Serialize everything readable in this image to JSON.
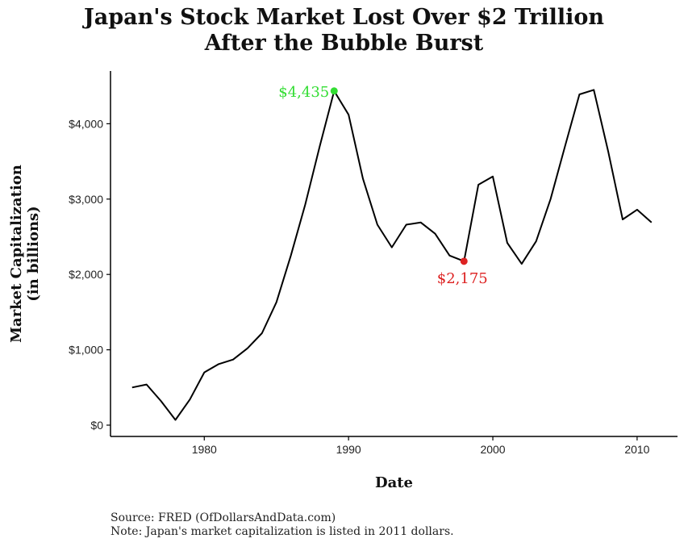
{
  "title_line1": "Japan's Stock Market Lost Over $2 Trillion",
  "title_line2": "After the Bubble Burst",
  "source_text": "Source:  FRED (OfDollarsAndData.com)",
  "note_text": "Note: Japan's market capitalization is listed in 2011 dollars.",
  "colors": {
    "line": "#000000",
    "peak": "#33dd33",
    "trough": "#dd2222"
  },
  "chart_data": {
    "type": "line",
    "xlabel": "Date",
    "ylabel_line1": "Market Capitalization",
    "ylabel_line2": "(in billions)",
    "xlim": [
      1973.5,
      2012.8
    ],
    "ylim": [
      -150,
      4700
    ],
    "x_ticks": [
      1980,
      1990,
      2000,
      2010
    ],
    "x_tick_labels": [
      "1980",
      "1990",
      "2000",
      "2010"
    ],
    "y_ticks": [
      0,
      1000,
      2000,
      3000,
      4000
    ],
    "y_tick_labels": [
      "$0",
      "$1,000",
      "$2,000",
      "$3,000",
      "$4,000"
    ],
    "grid": false,
    "series": [
      {
        "x": [
          1975,
          1976,
          1977,
          1978,
          1979,
          1980,
          1981,
          1982,
          1983,
          1984,
          1985,
          1986,
          1987,
          1988,
          1989,
          1990,
          1991,
          1992,
          1993,
          1994,
          1995,
          1996,
          1997,
          1998,
          1999,
          2000,
          2001,
          2002,
          2003,
          2004,
          2005,
          2006,
          2007,
          2008,
          2009,
          2010,
          2011
        ],
        "y": [
          500,
          540,
          320,
          70,
          340,
          700,
          810,
          870,
          1020,
          1220,
          1630,
          2250,
          2930,
          3700,
          4435,
          4120,
          3270,
          2660,
          2360,
          2660,
          2690,
          2540,
          2250,
          2175,
          3190,
          3300,
          2420,
          2140,
          2440,
          3000,
          3700,
          4390,
          4450,
          3630,
          2730,
          2860,
          2690
        ]
      }
    ],
    "annotations": [
      {
        "x": 1989,
        "y": 4435,
        "text": "$4,435",
        "color": "peak",
        "position": "left"
      },
      {
        "x": 1998,
        "y": 2175,
        "text": "$2,175",
        "color": "trough",
        "position": "below"
      }
    ]
  }
}
